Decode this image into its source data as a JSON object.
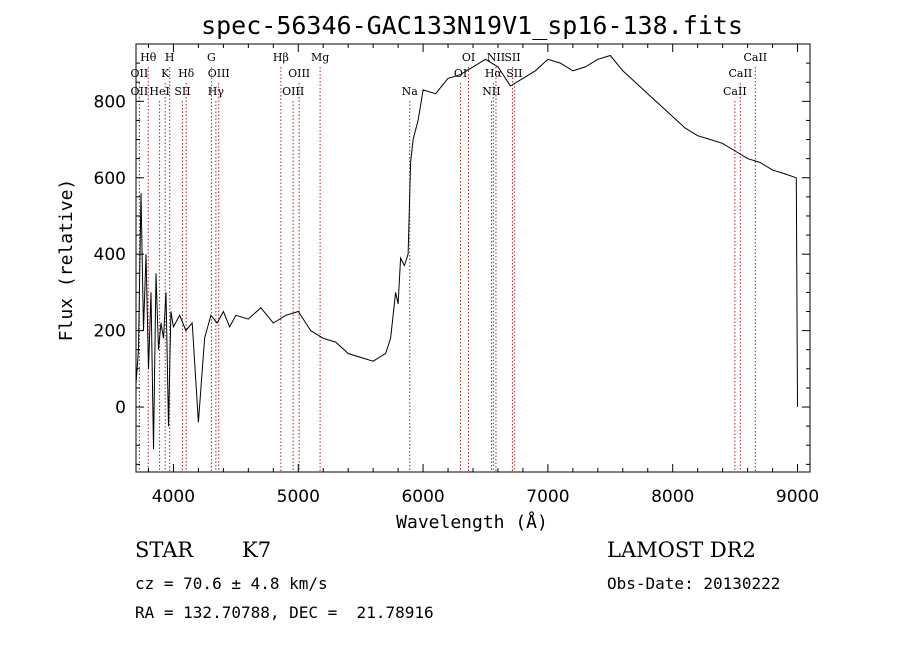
{
  "chart_data": {
    "type": "line",
    "title": "spec-56346-GAC133N19V1_sp16-138.fits",
    "xlabel": "Wavelength (Å)",
    "ylabel": "Flux (relative)",
    "xlim": [
      3700,
      9100
    ],
    "ylim": [
      -170,
      950
    ],
    "xticks": [
      4000,
      5000,
      6000,
      7000,
      8000,
      9000
    ],
    "yticks": [
      0,
      200,
      400,
      600,
      800
    ],
    "grid": false,
    "line_color": "#000000",
    "marker_color": "#b22222",
    "series": [
      {
        "x": [
          3700,
          3720,
          3740,
          3760,
          3780,
          3800,
          3820,
          3840,
          3860,
          3880,
          3900,
          3920,
          3940,
          3960,
          3980,
          4000,
          4050,
          4100,
          4150,
          4200,
          4250,
          4300,
          4350,
          4400,
          4450,
          4500,
          4600,
          4700,
          4800,
          4900,
          5000,
          5100,
          5200,
          5300,
          5400,
          5500,
          5600,
          5700,
          5740,
          5780,
          5800,
          5820,
          5850,
          5880,
          5900,
          5920,
          5960,
          6000,
          6100,
          6200,
          6300,
          6400,
          6500,
          6600,
          6700,
          6800,
          6900,
          7000,
          7100,
          7200,
          7300,
          7400,
          7500,
          7600,
          7700,
          7800,
          7900,
          8000,
          8100,
          8200,
          8300,
          8400,
          8500,
          8600,
          8700,
          8800,
          8900,
          8990,
          9000
        ],
        "y": [
          60,
          150,
          560,
          200,
          400,
          100,
          300,
          -110,
          350,
          150,
          220,
          180,
          300,
          -50,
          250,
          210,
          240,
          200,
          220,
          -40,
          180,
          240,
          220,
          250,
          210,
          240,
          230,
          260,
          220,
          240,
          250,
          200,
          180,
          170,
          140,
          130,
          120,
          140,
          180,
          300,
          270,
          390,
          370,
          400,
          640,
          700,
          750,
          830,
          820,
          860,
          870,
          890,
          910,
          890,
          840,
          860,
          880,
          910,
          900,
          880,
          890,
          910,
          920,
          880,
          850,
          820,
          790,
          760,
          730,
          710,
          700,
          690,
          670,
          650,
          640,
          620,
          610,
          600,
          0
        ]
      }
    ],
    "spectral_lines": [
      {
        "label": "Hθ",
        "wavelength": 3798,
        "row": 1
      },
      {
        "label": "H",
        "wavelength": 3970,
        "row": 1
      },
      {
        "label": "G",
        "wavelength": 4304,
        "row": 1
      },
      {
        "label": "Hβ",
        "wavelength": 4861,
        "row": 1
      },
      {
        "label": "Mg",
        "wavelength": 5175,
        "row": 1
      },
      {
        "label": "OI",
        "wavelength": 6364,
        "row": 1
      },
      {
        "label": "NII",
        "wavelength": 6584,
        "row": 1
      },
      {
        "label": "SII",
        "wavelength": 6716,
        "row": 1
      },
      {
        "label": "CaII",
        "wavelength": 8662,
        "row": 1
      },
      {
        "label": "OII",
        "wavelength": 3727,
        "row": 2
      },
      {
        "label": "K",
        "wavelength": 3934,
        "row": 2
      },
      {
        "label": "Hδ",
        "wavelength": 4102,
        "row": 2
      },
      {
        "label": "OIII",
        "wavelength": 4363,
        "row": 2
      },
      {
        "label": "OIII",
        "wavelength": 5007,
        "row": 2
      },
      {
        "label": "OI",
        "wavelength": 6300,
        "row": 2
      },
      {
        "label": "Hα",
        "wavelength": 6563,
        "row": 2
      },
      {
        "label": "SII",
        "wavelength": 6731,
        "row": 2
      },
      {
        "label": "CaII",
        "wavelength": 8542,
        "row": 2
      },
      {
        "label": "OII",
        "wavelength": 3727,
        "row": 3
      },
      {
        "label": "HeI",
        "wavelength": 3889,
        "row": 3
      },
      {
        "label": "SII",
        "wavelength": 4072,
        "row": 3
      },
      {
        "label": "Hγ",
        "wavelength": 4340,
        "row": 3
      },
      {
        "label": "OIII",
        "wavelength": 4959,
        "row": 3
      },
      {
        "label": "Na",
        "wavelength": 5893,
        "row": 3
      },
      {
        "label": "NII",
        "wavelength": 6548,
        "row": 3
      },
      {
        "label": "CaII",
        "wavelength": 8498,
        "row": 3
      }
    ]
  },
  "info": {
    "object_class": "STAR",
    "subclass": "K7",
    "survey": "LAMOST DR2",
    "redshift": "cz = 70.6 ± 4.8 km/s",
    "obs_date": "Obs-Date: 20130222",
    "coords": "RA = 132.70788, DEC =  21.78916"
  }
}
